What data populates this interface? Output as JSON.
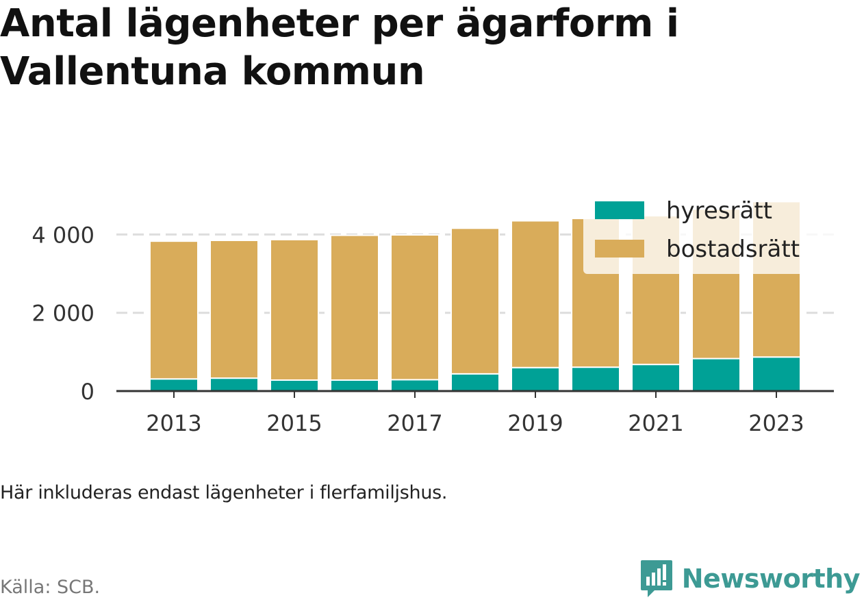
{
  "title": "Antal lägenheter per ägarform i Vallentuna kommun",
  "note": "Här inkluderas endast lägenheter i flerfamiljshus.",
  "source": "Källa: SCB.",
  "brand": "Newsworthy",
  "colors": {
    "hyresratt": "#00a196",
    "bostadsratt": "#d9ac5a",
    "grid": "#dddddd",
    "axis": "#333333",
    "brand": "#3d9a94"
  },
  "chart_data": {
    "type": "bar",
    "stacked": true,
    "x": [
      2013,
      2014,
      2015,
      2016,
      2017,
      2018,
      2019,
      2020,
      2021,
      2022,
      2023
    ],
    "x_tick_labels": [
      "2013",
      "2015",
      "2017",
      "2019",
      "2021",
      "2023"
    ],
    "y_tick_labels": [
      "0",
      "2 000",
      "4 000"
    ],
    "ylim": [
      0,
      4900
    ],
    "grid": true,
    "legend_position": "top-right",
    "series": [
      {
        "name": "hyresrätt",
        "values": [
          310,
          330,
          280,
          280,
          290,
          440,
          600,
          610,
          680,
          830,
          870
        ]
      },
      {
        "name": "bostadsrätt",
        "values": [
          3520,
          3520,
          3590,
          3700,
          3700,
          3720,
          3750,
          3800,
          3800,
          3820,
          3970
        ]
      }
    ]
  }
}
